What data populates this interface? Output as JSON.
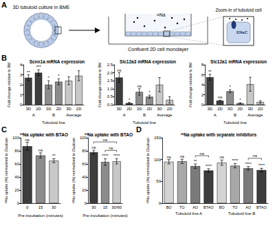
{
  "panel_labels": [
    "A",
    "B",
    "C",
    "D"
  ],
  "panel_a": {
    "culture": "3D tubuloid culture in BME",
    "monolayer": "Confluent 2D cell monolayer",
    "isotope": "²²Na",
    "zoom": "Zoom-in of tubuloid cell",
    "channel": "ENaC"
  },
  "chart_data": [
    {
      "type": "bar",
      "title": "Scnn1a mRNA expression",
      "ylabel": "Fold change relative to BM",
      "categories": [
        "3D",
        "2D",
        "3D",
        "2D",
        "3D",
        "2D"
      ],
      "group_labels": [
        "A",
        "B",
        "Average"
      ],
      "xlabel": "Tubuloid line",
      "values": [
        2.7,
        3.2,
        2.0,
        2.3,
        2.4,
        2.9
      ],
      "errors": [
        0.3,
        0.3,
        0.4,
        0.3,
        0.4,
        0.5
      ],
      "annotations": [
        "**",
        "***",
        "*",
        "*",
        null,
        null
      ],
      "colors": [
        "#3d3d3d",
        "#3d3d3d",
        "#8c8c8c",
        "#8c8c8c",
        "#c8c8c8",
        "#c8c8c8"
      ],
      "ylim": [
        0,
        4
      ],
      "yticks": [
        0,
        1,
        2,
        3,
        4
      ]
    },
    {
      "type": "bar",
      "title": "Slc12a3 mRNA expression",
      "ylabel": "Fold change relative to BM",
      "categories": [
        "3D",
        "2D",
        "3D",
        "2D",
        "3D",
        "2D"
      ],
      "group_labels": [
        "A",
        "B",
        "Average"
      ],
      "xlabel": "Tubuloid line",
      "values": [
        1.7,
        0.1,
        0.8,
        0.5,
        1.25,
        0.3
      ],
      "errors": [
        0.3,
        0.05,
        0.2,
        0.1,
        0.45,
        0.2
      ],
      "annotations": [
        "ns",
        "*",
        "ns",
        "*",
        null,
        null
      ],
      "colors": [
        "#3d3d3d",
        "#3d3d3d",
        "#8c8c8c",
        "#8c8c8c",
        "#c8c8c8",
        "#c8c8c8"
      ],
      "ylim": [
        0,
        2.5
      ],
      "yticks": [
        {
          "value": 0,
          "label": "0.0"
        },
        {
          "value": 0.5,
          "label": "0.5"
        },
        {
          "value": 1,
          "label": "1.0"
        },
        {
          "value": 1.5,
          "label": "1.5"
        },
        {
          "value": 2,
          "label": "2.0"
        },
        {
          "value": 2.5,
          "label": "2.5"
        }
      ]
    },
    {
      "type": "bar",
      "title": "Slc12a1 mRNA expression",
      "ylabel": "Fold change relative to BM",
      "categories": [
        "3D",
        "2D",
        "3D",
        "2D",
        "3D",
        "2D"
      ],
      "group_labels": [
        "A",
        "B",
        "Average"
      ],
      "xlabel": "Tubuloid line",
      "values": [
        5.5,
        0.8,
        2.7,
        0.3,
        4.1,
        0.55
      ],
      "errors": [
        0.6,
        0.1,
        0.3,
        0.1,
        1.4,
        0.25
      ],
      "annotations": [
        "**",
        "ns",
        "*",
        "*",
        null,
        null
      ],
      "colors": [
        "#3d3d3d",
        "#3d3d3d",
        "#8c8c8c",
        "#8c8c8c",
        "#c8c8c8",
        "#c8c8c8"
      ],
      "ylim": [
        0,
        8
      ],
      "yticks": [
        0,
        2,
        4,
        6,
        8
      ]
    },
    {
      "type": "bar",
      "title": "²²Na uptake with BTAO",
      "ylabel": "²²Na uptake (%) normalized to Ouabain",
      "categories": [
        "0",
        "15",
        "30"
      ],
      "xlabel": "Pre-incubation (minutes)",
      "values": [
        87,
        73,
        65
      ],
      "errors": [
        6,
        4,
        3
      ],
      "annotations": [
        "ns",
        "ns",
        "**"
      ],
      "colors": [
        "#3d3d3d",
        "#8c8c8c",
        "#c8c8c8"
      ],
      "ylim": [
        0,
        100
      ],
      "yticks": [
        0,
        20,
        40,
        60,
        80,
        100
      ]
    },
    {
      "type": "bar",
      "title": "²²Na uptake with BTAO",
      "ylabel": "²²Na uptake (%) normalized to Ouabain",
      "categories": [
        "30",
        "15",
        "30/60"
      ],
      "xlabel": "Pre-incubation (minutes)",
      "values": [
        78,
        63,
        64
      ],
      "errors": [
        3,
        5,
        4
      ],
      "annotations": [
        "ns",
        "****",
        "****"
      ],
      "brackets": [
        {
          "from": 0,
          "to": 2,
          "label": "ns"
        },
        {
          "from": 1,
          "to": 2,
          "label": "ns"
        }
      ],
      "colors": [
        "#3d3d3d",
        "#8c8c8c",
        "#c8c8c8"
      ],
      "ylim": [
        0,
        100
      ],
      "yticks": [
        0,
        20,
        40,
        60,
        80,
        100
      ]
    },
    {
      "type": "bar",
      "title": "²²Na uptake with separate inhibitors",
      "ylabel": "²²Na uptake (%) normalized to Ouabain",
      "categories": [
        "BO",
        "TO",
        "AO",
        "BTAO",
        "BO",
        "TO",
        "AO",
        "BTAO"
      ],
      "group_labels": [
        "Tubuloid line A",
        "Tubuloid line B"
      ],
      "values": [
        95,
        96,
        85,
        75,
        93,
        86,
        80,
        76
      ],
      "errors": [
        5,
        5,
        5,
        4,
        6,
        5,
        4,
        4
      ],
      "annotations": [
        "ns",
        "ns",
        "**",
        "****",
        "ns",
        "****",
        "****",
        "****"
      ],
      "brackets": [
        {
          "from": 2,
          "to": 3,
          "label": "ns"
        },
        {
          "from": 6,
          "to": 7,
          "label": "ns"
        }
      ],
      "colors": [
        "#d4d4d4",
        "#a8a8a8",
        "#7a7a7a",
        "#3d3d3d",
        "#d4d4d4",
        "#a8a8a8",
        "#7a7a7a",
        "#3d3d3d"
      ],
      "ylim": [
        0,
        150
      ],
      "yticks": [
        0,
        50,
        100,
        150
      ]
    }
  ]
}
